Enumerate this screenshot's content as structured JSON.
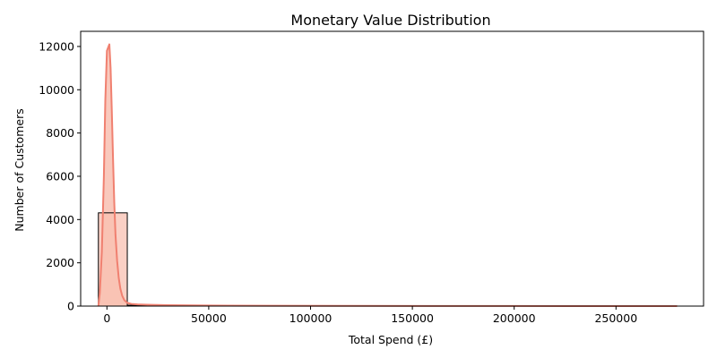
{
  "chart_data": {
    "type": "bar",
    "title": "Monetary Value Distribution",
    "xlabel": "Total Spend (£)",
    "ylabel": "Number of Customers",
    "xlim": [
      -12900,
      293000
    ],
    "ylim": [
      0,
      12700
    ],
    "x_ticks": [
      0,
      50000,
      100000,
      150000,
      200000,
      250000
    ],
    "y_ticks": [
      0,
      2000,
      4000,
      6000,
      8000,
      10000,
      12000
    ],
    "grid": false,
    "legend": "none",
    "colors": {
      "bar_fill": "#f8c0b2",
      "bar_edge": "#000000",
      "kde_line": "#f08070",
      "kde_fill": "#f8c0b2"
    },
    "bins": [
      {
        "x0": -4200,
        "x1": 10000,
        "count": 4310
      },
      {
        "x0": 10000,
        "x1": 24000,
        "count": 38
      },
      {
        "x0": 24000,
        "x1": 38000,
        "count": 10
      },
      {
        "x0": 38000,
        "x1": 52000,
        "count": 4
      },
      {
        "x0": 52000,
        "x1": 66000,
        "count": 2
      },
      {
        "x0": 66000,
        "x1": 80000,
        "count": 1
      },
      {
        "x0": 80000,
        "x1": 94000,
        "count": 0
      },
      {
        "x0": 94000,
        "x1": 108000,
        "count": 0
      },
      {
        "x0": 108000,
        "x1": 122000,
        "count": 1
      },
      {
        "x0": 122000,
        "x1": 136000,
        "count": 1
      },
      {
        "x0": 136000,
        "x1": 150000,
        "count": 0
      },
      {
        "x0": 150000,
        "x1": 164000,
        "count": 0
      },
      {
        "x0": 164000,
        "x1": 178000,
        "count": 0
      },
      {
        "x0": 178000,
        "x1": 192000,
        "count": 0
      },
      {
        "x0": 192000,
        "x1": 206000,
        "count": 0
      },
      {
        "x0": 206000,
        "x1": 220000,
        "count": 0
      },
      {
        "x0": 220000,
        "x1": 234000,
        "count": 0
      },
      {
        "x0": 234000,
        "x1": 248000,
        "count": 0
      },
      {
        "x0": 248000,
        "x1": 262000,
        "count": 1
      },
      {
        "x0": 262000,
        "x1": 280000,
        "count": 1
      }
    ],
    "kde": {
      "x": [
        -4200,
        -3500,
        -2500,
        -1500,
        -800,
        0,
        600,
        1200,
        1800,
        2400,
        3000,
        3600,
        4200,
        5000,
        5800,
        6600,
        7500,
        8500,
        10000,
        12000,
        15000,
        20000,
        30000,
        50000,
        80000,
        120000,
        160000,
        200000,
        240000,
        280000
      ],
      "y": [
        0,
        600,
        2500,
        6000,
        9500,
        11800,
        11950,
        12100,
        11000,
        9000,
        6800,
        4800,
        3300,
        2100,
        1300,
        800,
        480,
        280,
        150,
        100,
        80,
        60,
        40,
        25,
        15,
        8,
        5,
        3,
        2,
        1
      ]
    }
  }
}
